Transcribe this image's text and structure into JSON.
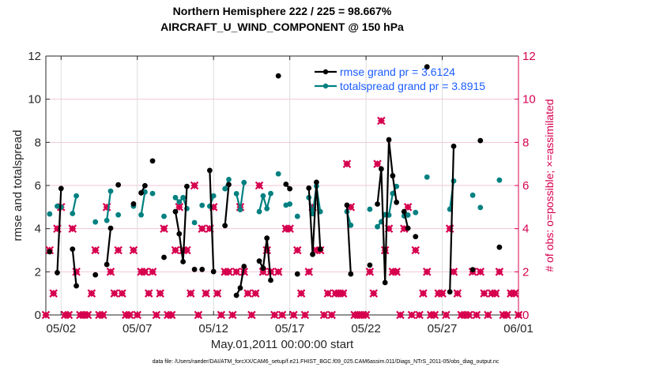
{
  "chart_data": {
    "type": "line",
    "title": [
      "Northern Hemisphere 222 / 225 = 98.667%",
      "AIRCRAFT_U_WIND_COMPONENT @ 150 hPa"
    ],
    "xlabel": "May.01,2011 00:00:00 start",
    "ylabel": "rmse and totalspread",
    "ylabel_right": "# of obs: o=possible; ×=assimilated",
    "footnote": "data file: /Users/raeder/DAI/ATM_forcXX/CAM6_setup/f.e21.FHIST_BGC.f09_025.CAM6assim.011/Diags_NTrS_2011-05/obs_diag_output.nc",
    "xlim": [
      "05/01 00:00",
      "06/01 00:00"
    ],
    "ylim": [
      0,
      12
    ],
    "ylim_right": [
      0,
      12
    ],
    "xticks": [
      "05/02",
      "05/07",
      "05/12",
      "05/17",
      "05/22",
      "05/27",
      "06/01"
    ],
    "yticks": [
      "0",
      "2",
      "4",
      "6",
      "8",
      "10",
      "12"
    ],
    "grid": true,
    "legend_position": "top-right",
    "colors": {
      "rmse": "#000000",
      "totalspread": "#008080",
      "nobs": "#d6004f",
      "legend_text": "#1a5cff"
    },
    "x": [
      "05/01 00:00",
      "05/01 06:00",
      "05/01 12:00",
      "05/01 18:00",
      "05/02 00:00",
      "05/02 06:00",
      "05/02 12:00",
      "05/02 18:00",
      "05/03 00:00",
      "05/03 06:00",
      "05/03 12:00",
      "05/03 18:00",
      "05/04 00:00",
      "05/04 06:00",
      "05/04 12:00",
      "05/04 18:00",
      "05/05 00:00",
      "05/05 06:00",
      "05/05 12:00",
      "05/05 18:00",
      "05/06 00:00",
      "05/06 06:00",
      "05/06 12:00",
      "05/06 18:00",
      "05/07 00:00",
      "05/07 06:00",
      "05/07 12:00",
      "05/07 18:00",
      "05/08 00:00",
      "05/08 06:00",
      "05/08 12:00",
      "05/08 18:00",
      "05/09 00:00",
      "05/09 06:00",
      "05/09 12:00",
      "05/09 18:00",
      "05/10 00:00",
      "05/10 06:00",
      "05/10 12:00",
      "05/10 18:00",
      "05/11 00:00",
      "05/11 06:00",
      "05/11 12:00",
      "05/11 18:00",
      "05/12 00:00",
      "05/12 06:00",
      "05/12 12:00",
      "05/12 18:00",
      "05/13 00:00",
      "05/13 06:00",
      "05/13 12:00",
      "05/13 18:00",
      "05/14 00:00",
      "05/14 06:00",
      "05/14 12:00",
      "05/14 18:00",
      "05/15 00:00",
      "05/15 06:00",
      "05/15 12:00",
      "05/15 18:00",
      "05/16 00:00",
      "05/16 06:00",
      "05/16 12:00",
      "05/16 18:00",
      "05/17 00:00",
      "05/17 06:00",
      "05/17 12:00",
      "05/17 18:00",
      "05/18 00:00",
      "05/18 06:00",
      "05/18 12:00",
      "05/18 18:00",
      "05/19 00:00",
      "05/19 06:00",
      "05/19 12:00",
      "05/19 18:00",
      "05/20 00:00",
      "05/20 06:00",
      "05/20 12:00",
      "05/20 18:00",
      "05/21 00:00",
      "05/21 06:00",
      "05/21 12:00",
      "05/21 18:00",
      "05/22 00:00",
      "05/22 06:00",
      "05/22 12:00",
      "05/22 18:00",
      "05/23 00:00",
      "05/23 06:00",
      "05/23 12:00",
      "05/23 18:00",
      "05/24 00:00",
      "05/24 06:00",
      "05/24 12:00",
      "05/24 18:00",
      "05/25 00:00",
      "05/25 06:00",
      "05/25 12:00",
      "05/25 18:00",
      "05/26 00:00",
      "05/26 06:00",
      "05/26 12:00",
      "05/26 18:00",
      "05/27 00:00",
      "05/27 06:00",
      "05/27 12:00",
      "05/27 18:00",
      "05/28 00:00",
      "05/28 06:00",
      "05/28 12:00",
      "05/28 18:00",
      "05/29 00:00",
      "05/29 06:00",
      "05/29 12:00",
      "05/29 18:00",
      "05/30 00:00",
      "05/30 06:00",
      "05/30 12:00",
      "05/30 18:00",
      "05/31 00:00",
      "05/31 06:00",
      "05/31 12:00",
      "05/31 18:00",
      "06/01 00:00"
    ],
    "series": [
      {
        "name": "rmse grand pr = 3.6124",
        "axis": "left",
        "values": [
          null,
          2.93,
          null,
          1.96,
          5.86,
          null,
          null,
          3.05,
          1.35,
          null,
          null,
          null,
          null,
          1.86,
          null,
          null,
          2.34,
          4.02,
          null,
          6.03,
          null,
          null,
          null,
          5.15,
          null,
          5.66,
          5.99,
          null,
          7.14,
          null,
          null,
          2.67,
          null,
          null,
          4.79,
          3.76,
          2.47,
          5.96,
          null,
          2.11,
          null,
          2.11,
          null,
          6.7,
          2.01,
          null,
          null,
          4.14,
          6.04,
          null,
          0.91,
          1.25,
          2.25,
          null,
          null,
          null,
          2.5,
          2.17,
          3.56,
          1.61,
          null,
          11.08,
          null,
          6.06,
          5.85,
          null,
          1.9,
          null,
          null,
          5.88,
          2.81,
          6.15,
          3.05,
          null,
          null,
          null,
          null,
          null,
          null,
          5.09,
          1.9,
          null,
          null,
          null,
          null,
          2.31,
          null,
          5.14,
          6.77,
          1.5,
          8.12,
          6.45,
          5.22,
          null,
          4.79,
          4.02,
          null,
          3.63,
          null,
          null,
          11.5,
          null,
          null,
          null,
          null,
          null,
          1.07,
          7.82,
          null,
          null,
          null,
          null,
          2.1,
          null,
          8.08,
          null,
          null,
          null,
          null,
          3.14,
          null,
          null,
          null,
          null,
          null
        ]
      },
      {
        "name": "totalspread grand pr = 3.8915",
        "axis": "left",
        "values": [
          null,
          4.68,
          null,
          5.04,
          5.0,
          null,
          null,
          4.7,
          5.52,
          null,
          null,
          null,
          null,
          4.31,
          null,
          null,
          4.38,
          5.74,
          null,
          4.64,
          null,
          null,
          null,
          5.04,
          null,
          4.64,
          5.7,
          null,
          5.63,
          null,
          null,
          4.57,
          null,
          null,
          5.44,
          5.24,
          5.44,
          4.93,
          null,
          4.28,
          null,
          5.08,
          null,
          5.04,
          5.52,
          null,
          null,
          5.85,
          6.28,
          null,
          5.62,
          4.88,
          6.14,
          null,
          null,
          null,
          4.79,
          5.52,
          4.93,
          5.63,
          null,
          6.54,
          null,
          5.09,
          5.14,
          null,
          4.57,
          null,
          null,
          5.44,
          4.69,
          5.97,
          4.79,
          null,
          null,
          null,
          null,
          null,
          null,
          4.79,
          4.16,
          null,
          null,
          null,
          null,
          4.9,
          null,
          4.09,
          4.32,
          4.65,
          4.63,
          5.63,
          5.96,
          null,
          4.59,
          4.63,
          null,
          4.75,
          null,
          null,
          6.39,
          null,
          null,
          null,
          null,
          null,
          4.9,
          6.21,
          null,
          null,
          null,
          null,
          5.55,
          null,
          4.98,
          null,
          null,
          null,
          null,
          6.25,
          null,
          null,
          null,
          null,
          null
        ]
      },
      {
        "axis": "right",
        "values": [
          0,
          3,
          1,
          4,
          5,
          0,
          0,
          4,
          2,
          0,
          0,
          0,
          1,
          3,
          0,
          0,
          5,
          2,
          1,
          3,
          1,
          0,
          0,
          3,
          0,
          2,
          2,
          1,
          2,
          0,
          1,
          4,
          0,
          0,
          3,
          5,
          3,
          3,
          1,
          6,
          0,
          4,
          1,
          4,
          5,
          1,
          0,
          2,
          2,
          0,
          2,
          5,
          2,
          1,
          0,
          1,
          6,
          2,
          3,
          2,
          0,
          2,
          0,
          4,
          4,
          0,
          3,
          1,
          0,
          2,
          5,
          3,
          3,
          0,
          1,
          0,
          1,
          1,
          1,
          7,
          5,
          0,
          0,
          0,
          0,
          2,
          1,
          7,
          9,
          3,
          4,
          2,
          2,
          0,
          4,
          5,
          0,
          3,
          0,
          1,
          2,
          0,
          0,
          1,
          1,
          0,
          4,
          2,
          1,
          0,
          0,
          0,
          2,
          0,
          2,
          1,
          0,
          1,
          1,
          2,
          0,
          0,
          1,
          1,
          0
        ]
      }
    ]
  }
}
